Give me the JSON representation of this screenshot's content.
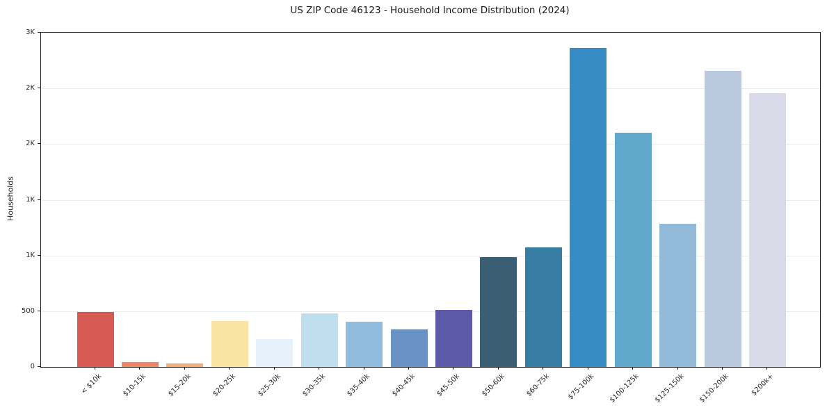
{
  "chart_data": {
    "type": "bar",
    "title": "US ZIP Code 46123 - Household Income Distribution (2024)",
    "xlabel": "",
    "ylabel": "Households",
    "categories": [
      "< $10k",
      "$10-15k",
      "$15-20k",
      "$20-25k",
      "$25-30k",
      "$30-35k",
      "$35-40k",
      "$40-45k",
      "$45-50k",
      "$50-60k",
      "$60-75k",
      "$75-100k",
      "$100-125k",
      "$125-150k",
      "$150-200k",
      "$200k+"
    ],
    "values": [
      490,
      45,
      30,
      410,
      250,
      478,
      405,
      338,
      510,
      985,
      1075,
      2860,
      2105,
      1282,
      2660,
      2460
    ],
    "bar_colors": [
      "#d85a55",
      "#ee8768",
      "#f3ad7c",
      "#fbe3a3",
      "#e7f1f9",
      "#c0dfee",
      "#90bcdd",
      "#6b92c5",
      "#5c59a8",
      "#3a5f74",
      "#377da3",
      "#368bc4",
      "#60a7cc",
      "#93b9d9",
      "#b9cade",
      "#d8dae8"
    ],
    "ylim": [
      0,
      3000
    ],
    "yticks": [
      {
        "value": 0,
        "label": "0"
      },
      {
        "value": 500,
        "label": "500"
      },
      {
        "value": 1000,
        "label": "1K"
      },
      {
        "value": 1500,
        "label": "1K"
      },
      {
        "value": 2000,
        "label": "2K"
      },
      {
        "value": 2500,
        "label": "2K"
      },
      {
        "value": 3000,
        "label": "3K"
      }
    ],
    "grid": "horizontal-light",
    "legend": "none",
    "background_color": "#ffffff",
    "axis_color": "#1f1f1f",
    "gridline_color": "#ebebeb"
  }
}
